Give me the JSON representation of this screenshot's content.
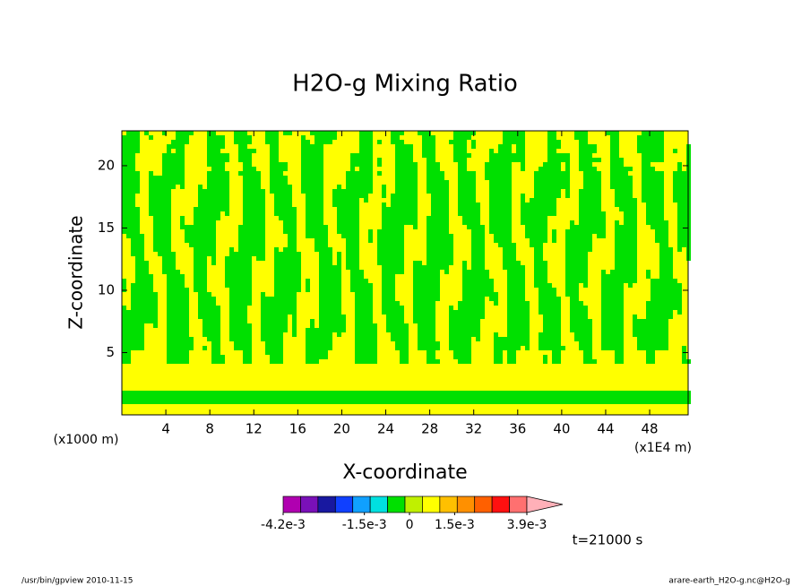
{
  "chart_data": {
    "type": "contour",
    "title": "H2O-g Mixing Ratio",
    "x_label": "X-coordinate",
    "y_label": "Z-coordinate",
    "x_unit": "(x1000 m)",
    "x_unit_right": "(x1E4 m)",
    "xlim": [
      0,
      51.5
    ],
    "ylim": [
      0,
      22.8
    ],
    "xticks": [
      4,
      8,
      12,
      16,
      20,
      24,
      28,
      32,
      36,
      40,
      44,
      48
    ],
    "yticks": [
      5,
      10,
      15,
      20
    ],
    "field_colors": {
      "low": "#ffff00",
      "high": "#00e000",
      "line": "#1a1a80"
    },
    "colorbar": {
      "lim": [
        -0.0042,
        0.0039
      ],
      "colors": [
        "#b000b0",
        "#7a10b8",
        "#1818a0",
        "#1040ff",
        "#10a0ff",
        "#00e0e0",
        "#00e000",
        "#c0f000",
        "#ffff00",
        "#ffc000",
        "#ff9000",
        "#ff6000",
        "#ff1010",
        "#ff7070"
      ],
      "extend_color": "#ffb0b8",
      "ticks": [
        {
          "value": -0.0042,
          "label": "-4.2e-3"
        },
        {
          "value": -0.0015,
          "label": "-1.5e-3"
        },
        0,
        {
          "value": 0.0015,
          "label": "1.5e-3"
        },
        {
          "value": 0.0039,
          "label": "3.9e-3"
        }
      ]
    },
    "time_label": "t=21000 s",
    "footer_left": "/usr/bin/gpview  2010-11-15",
    "footer_right": "arare-earth_H2O-g.nc@H2O-g"
  }
}
